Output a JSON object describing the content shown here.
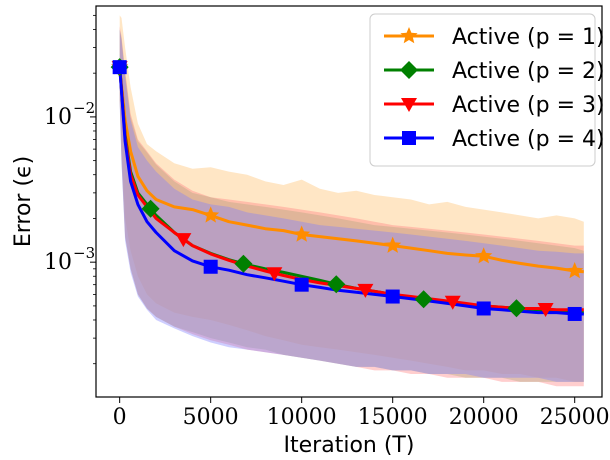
{
  "chart_data": {
    "type": "line",
    "xlabel": "Iteration (T)",
    "ylabel": "Error (ϵ)",
    "xlim": [
      -1300,
      26500
    ],
    "ylim": [
      0.000118,
      0.058
    ],
    "yscale": "log",
    "x_ticks": [
      0,
      5000,
      10000,
      15000,
      20000,
      25000
    ],
    "x_tick_labels": [
      "0",
      "5000",
      "10000",
      "15000",
      "20000",
      "25000"
    ],
    "y_ticks": [
      0.001,
      0.01
    ],
    "y_tick_labels": [
      {
        "base": "10",
        "exp": "−3"
      },
      {
        "base": "10",
        "exp": "−2"
      }
    ],
    "grid": false,
    "legend_position": "top-right",
    "x": [
      0,
      100,
      300,
      600,
      1000,
      1500,
      2000,
      3000,
      4000,
      5000,
      6000,
      7000,
      8000,
      9000,
      10000,
      11000,
      12000,
      13000,
      14000,
      15000,
      16000,
      17000,
      18000,
      19000,
      20000,
      21000,
      22000,
      23000,
      24000,
      25000,
      25500
    ],
    "series": [
      {
        "name": "Active (p = 1)",
        "marker": "star",
        "color": "#ff8c00",
        "band_color": "#ffb75a",
        "values": [
          0.022,
          0.0165,
          0.0095,
          0.0058,
          0.0039,
          0.0031,
          0.0027,
          0.0024,
          0.0023,
          0.0021,
          0.0019,
          0.0018,
          0.0017,
          0.00165,
          0.00155,
          0.0015,
          0.00145,
          0.0014,
          0.00135,
          0.0013,
          0.00125,
          0.0012,
          0.00115,
          0.00112,
          0.0011,
          0.00103,
          0.00098,
          0.00094,
          0.00091,
          0.00087,
          0.00086
        ],
        "upper": [
          0.05,
          0.048,
          0.03,
          0.016,
          0.009,
          0.0065,
          0.0058,
          0.0048,
          0.0044,
          0.0045,
          0.0042,
          0.004,
          0.0036,
          0.0034,
          0.0037,
          0.0032,
          0.003,
          0.0031,
          0.0029,
          0.0028,
          0.0027,
          0.0025,
          0.0026,
          0.0024,
          0.0023,
          0.0022,
          0.0021,
          0.002,
          0.0021,
          0.002,
          0.0019
        ],
        "lower": [
          0.013,
          0.006,
          0.002,
          0.0012,
          0.0008,
          0.0006,
          0.00052,
          0.00045,
          0.00042,
          0.0004,
          0.00037,
          0.00034,
          0.00031,
          0.00029,
          0.00027,
          0.00026,
          0.00025,
          0.00024,
          0.00023,
          0.00022,
          0.00021,
          0.0002,
          0.00019,
          0.00018,
          0.00018,
          0.00017,
          0.00017,
          0.00016,
          0.00016,
          0.00015,
          0.00015
        ],
        "marker_x": [
          0,
          5000,
          10000,
          15000,
          20000,
          25000
        ]
      },
      {
        "name": "Active (p = 2)",
        "marker": "diamond",
        "color": "#008000",
        "band_color": "#7fbf7f",
        "values": [
          0.022,
          0.0155,
          0.0075,
          0.0042,
          0.003,
          0.0025,
          0.0021,
          0.0016,
          0.0013,
          0.00115,
          0.00104,
          0.00096,
          0.0009,
          0.00085,
          0.0008,
          0.00075,
          0.0007,
          0.00066,
          0.00063,
          0.0006,
          0.00057,
          0.00055,
          0.00053,
          0.00051,
          0.0005,
          0.00049,
          0.00048,
          0.00047,
          0.00046,
          0.00045,
          0.00045
        ],
        "upper": [
          0.04,
          0.035,
          0.02,
          0.01,
          0.0068,
          0.0057,
          0.0047,
          0.0036,
          0.003,
          0.0028,
          0.0026,
          0.0025,
          0.0024,
          0.0023,
          0.0022,
          0.0021,
          0.002,
          0.0019,
          0.0018,
          0.00175,
          0.0017,
          0.00165,
          0.0016,
          0.00155,
          0.0015,
          0.00145,
          0.0014,
          0.00135,
          0.0013,
          0.00125,
          0.0012
        ],
        "lower": [
          0.013,
          0.005,
          0.0015,
          0.0009,
          0.0006,
          0.00048,
          0.00042,
          0.00036,
          0.00033,
          0.0003,
          0.00028,
          0.00026,
          0.00025,
          0.00023,
          0.00022,
          0.00021,
          0.0002,
          0.00019,
          0.00019,
          0.00018,
          0.00018,
          0.00017,
          0.00017,
          0.00016,
          0.00016,
          0.00016,
          0.00015,
          0.00015,
          0.00015,
          0.00015,
          0.00015
        ],
        "marker_x": [
          0,
          1700,
          6800,
          11900,
          16700,
          21800
        ]
      },
      {
        "name": "Active (p = 3)",
        "marker": "triangle-down",
        "color": "#ff0000",
        "band_color": "#ff7f7f",
        "values": [
          0.022,
          0.0155,
          0.0072,
          0.004,
          0.0029,
          0.0024,
          0.002,
          0.0016,
          0.0013,
          0.00114,
          0.00103,
          0.00094,
          0.00087,
          0.00081,
          0.00076,
          0.00072,
          0.00069,
          0.00066,
          0.00063,
          0.0006,
          0.00058,
          0.00056,
          0.00054,
          0.00052,
          0.0005,
          0.00049,
          0.00048,
          0.00048,
          0.00047,
          0.00047,
          0.00047
        ],
        "upper": [
          0.042,
          0.036,
          0.021,
          0.0105,
          0.007,
          0.0058,
          0.0048,
          0.0037,
          0.0031,
          0.0028,
          0.0027,
          0.0026,
          0.0025,
          0.0024,
          0.0023,
          0.0022,
          0.0021,
          0.002,
          0.0019,
          0.0018,
          0.00175,
          0.0017,
          0.00165,
          0.0016,
          0.00155,
          0.0015,
          0.00145,
          0.0014,
          0.00135,
          0.0013,
          0.0013
        ],
        "lower": [
          0.013,
          0.0052,
          0.0015,
          0.0009,
          0.0006,
          0.00048,
          0.00042,
          0.00036,
          0.00032,
          0.00029,
          0.00027,
          0.00025,
          0.00024,
          0.00023,
          0.00022,
          0.00021,
          0.0002,
          0.00019,
          0.00018,
          0.00018,
          0.00017,
          0.00017,
          0.00016,
          0.00016,
          0.00016,
          0.00015,
          0.00015,
          0.00015,
          0.00014,
          0.00014,
          0.00014
        ],
        "marker_x": [
          0,
          3500,
          8500,
          13500,
          18300,
          23400
        ]
      },
      {
        "name": "Active (p = 4)",
        "marker": "square",
        "color": "#0000ff",
        "band_color": "#7f7fff",
        "values": [
          0.022,
          0.015,
          0.0068,
          0.0036,
          0.0025,
          0.0019,
          0.0016,
          0.0012,
          0.00102,
          0.00093,
          0.00088,
          0.00082,
          0.00078,
          0.00074,
          0.0007,
          0.00067,
          0.00064,
          0.00062,
          0.0006,
          0.00058,
          0.00056,
          0.00054,
          0.00052,
          0.0005,
          0.00048,
          0.00047,
          0.00046,
          0.00045,
          0.00045,
          0.00044,
          0.00044
        ],
        "upper": [
          0.04,
          0.034,
          0.019,
          0.0095,
          0.0062,
          0.005,
          0.0042,
          0.0032,
          0.0027,
          0.0025,
          0.0024,
          0.0022,
          0.0021,
          0.002,
          0.0019,
          0.0018,
          0.00175,
          0.0017,
          0.00165,
          0.0016,
          0.00155,
          0.0015,
          0.00145,
          0.0014,
          0.00135,
          0.0013,
          0.00125,
          0.0012,
          0.00118,
          0.00115,
          0.00115
        ],
        "lower": [
          0.012,
          0.0048,
          0.0014,
          0.00085,
          0.00058,
          0.00047,
          0.0004,
          0.00035,
          0.00031,
          0.00028,
          0.00026,
          0.00025,
          0.00024,
          0.00023,
          0.00022,
          0.00021,
          0.0002,
          0.00019,
          0.00019,
          0.00018,
          0.00018,
          0.00017,
          0.00017,
          0.00017,
          0.00016,
          0.00016,
          0.00016,
          0.00016,
          0.00015,
          0.00015,
          0.00015
        ],
        "marker_x": [
          0,
          5000,
          10000,
          15000,
          20000,
          25000
        ]
      }
    ]
  }
}
